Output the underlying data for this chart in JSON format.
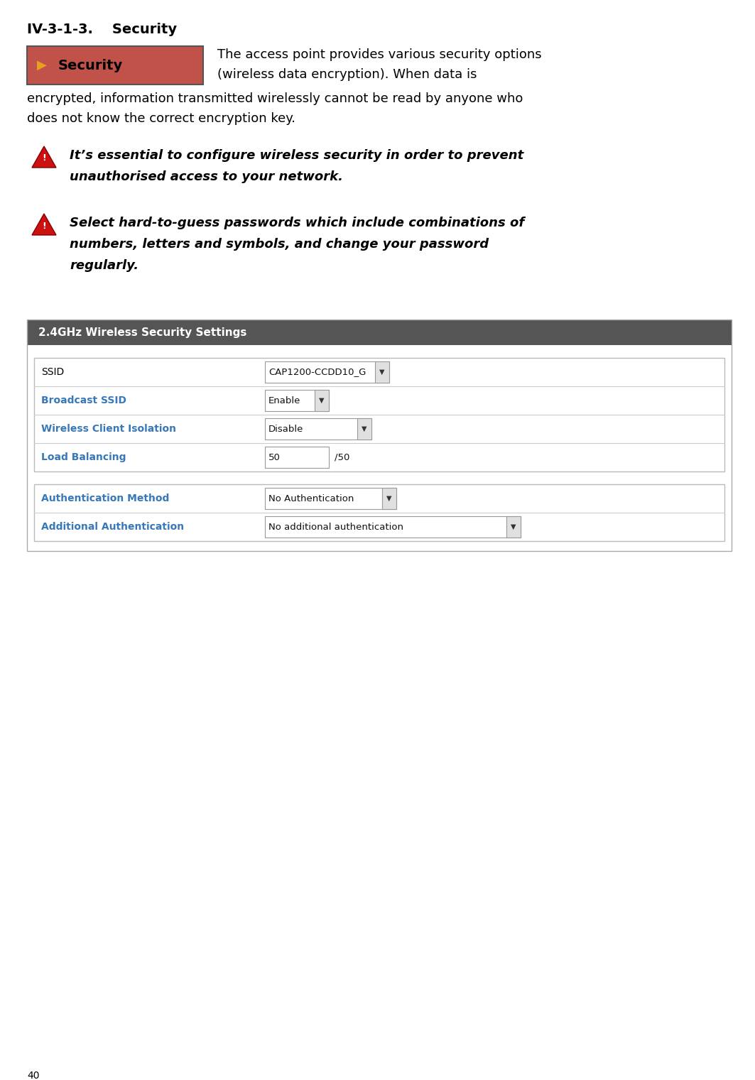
{
  "page_number": "40",
  "section_title": "IV-3-1-3.    Security",
  "security_badge_bg": "#c0524a",
  "security_badge_border": "#555555",
  "security_arrow_color": "#e8a020",
  "security_text": "Security",
  "intro_text_line1": "The access point provides various security options",
  "intro_text_line2": "(wireless data encryption). When data is",
  "intro_text_line3": "encrypted, information transmitted wirelessly cannot be read by anyone who",
  "intro_text_line4": "does not know the correct encryption key.",
  "warning1_line1": "It’s essential to configure wireless security in order to prevent",
  "warning1_line2": "unauthorised access to your network.",
  "warning2_line1": "Select hard-to-guess passwords which include combinations of",
  "warning2_line2": "numbers, letters and symbols, and change your password",
  "warning2_line3": "regularly.",
  "table_header": "2.4GHz Wireless Security Settings",
  "table_header_bg": "#555555",
  "table_header_text_color": "#ffffff",
  "table_outer_bg": "#e8e8e8",
  "table_outer_border": "#aaaaaa",
  "table_inner_bg": "#ffffff",
  "table_inner_border": "#bbbbbb",
  "table_divider_color": "#cccccc",
  "label_color": "#3878b8",
  "ssid_label": "SSID",
  "ssid_value": "CAP1200-CCDD10_G",
  "broadcast_label": "Broadcast SSID",
  "broadcast_value": "Enable",
  "isolation_label": "Wireless Client Isolation",
  "isolation_value": "Disable",
  "balancing_label": "Load Balancing",
  "balancing_value1": "50",
  "balancing_value2": "/50",
  "auth_label": "Authentication Method",
  "auth_value": "No Authentication",
  "addauth_label": "Additional Authentication",
  "addauth_value": "No additional authentication",
  "background_color": "#ffffff",
  "text_color": "#000000"
}
